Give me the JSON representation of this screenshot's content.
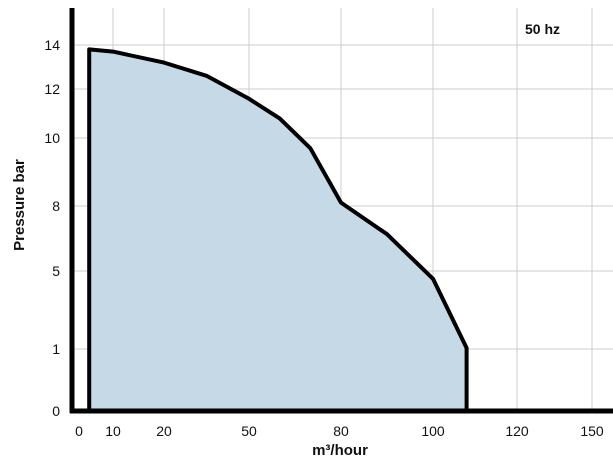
{
  "chart_data": {
    "type": "area",
    "title": "",
    "annotation": "50 hz",
    "xlabel": "m³/hour",
    "ylabel": "Pressure bar",
    "x_ticks": [
      "0",
      "10",
      "20",
      "50",
      "80",
      "100",
      "120",
      "150"
    ],
    "y_ticks": [
      "0",
      "1",
      "5",
      "8",
      "10",
      "12",
      "14"
    ],
    "grid": true,
    "fill_color": "#c5dae6",
    "line_color": "#000000",
    "series": [
      {
        "x": [
          3,
          3,
          10,
          20,
          35,
          50,
          60,
          70,
          80,
          90,
          100,
          108,
          108
        ],
        "y": [
          0,
          13.8,
          13.7,
          13.2,
          12.6,
          11.6,
          10.8,
          9.7,
          8.1,
          6.7,
          4.6,
          1.05,
          0
        ]
      }
    ]
  }
}
